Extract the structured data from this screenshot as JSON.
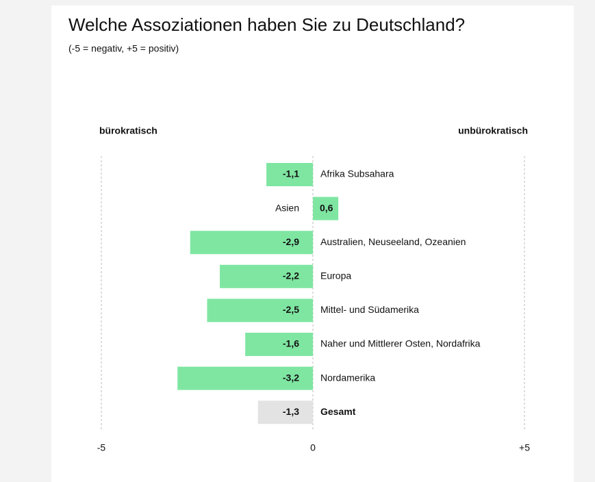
{
  "chart_data": {
    "type": "bar",
    "orientation": "horizontal",
    "title": "Welche Assoziationen haben Sie zu Deutschland?",
    "subtitle": "(-5 = negativ, +5 = positiv)",
    "left_label": "bürokratisch",
    "right_label": "unbürokratisch",
    "categories": [
      "Afrika Subsahara",
      "Asien",
      "Australien, Neuseeland, Ozeanien",
      "Europa",
      "Mittel- und Südamerika",
      "Naher und Mittlerer Osten, Nordafrika",
      "Nordamerika",
      "Gesamt"
    ],
    "values": [
      -1.1,
      0.6,
      -2.9,
      -2.2,
      -2.5,
      -1.6,
      -3.2,
      -1.3
    ],
    "value_labels": [
      "-1,1",
      "0,6",
      "-2,9",
      "-2,2",
      "-2,5",
      "-1,6",
      "-3,2",
      "-1,3"
    ],
    "colors": [
      "#7fe6a2",
      "#7fe6a2",
      "#7fe6a2",
      "#7fe6a2",
      "#7fe6a2",
      "#7fe6a2",
      "#7fe6a2",
      "#e3e3e3"
    ],
    "xlim": [
      -5,
      5
    ],
    "xticks": [
      -5,
      0,
      {
        "value": 5,
        "label": "+5"
      }
    ],
    "grid": true
  }
}
